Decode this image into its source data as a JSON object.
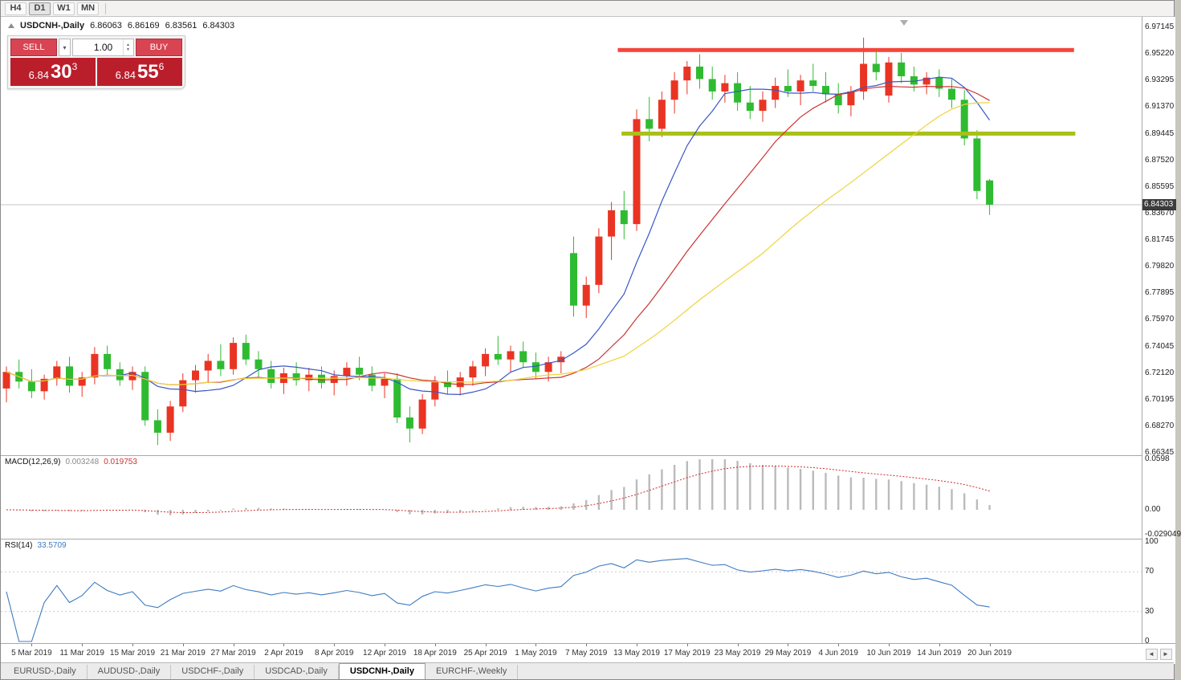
{
  "window": {
    "periods": [
      {
        "label": "H4",
        "active": false
      },
      {
        "label": "D1",
        "active": true
      },
      {
        "label": "W1",
        "active": false
      },
      {
        "label": "MN",
        "active": false
      }
    ]
  },
  "chart": {
    "symbol_label": "USDCNH-,Daily",
    "ohlc": {
      "open": "6.86063",
      "high": "6.86169",
      "low": "6.83561",
      "close": "6.84303"
    },
    "trade_panel": {
      "sell_label": "SELL",
      "buy_label": "BUY",
      "volume": "1.00",
      "bid": {
        "big": "6.84",
        "pips": "30",
        "point": "3"
      },
      "ask": {
        "big": "6.84",
        "pips": "55",
        "point": "6"
      }
    }
  },
  "icons": {
    "dropdown": "▾",
    "spin_up": "▲",
    "spin_down": "▼"
  },
  "axis_arrows": {
    "left": "◄",
    "right": "►"
  },
  "tabs": [
    {
      "label": "EURUSD-,Daily",
      "active": false
    },
    {
      "label": "AUDUSD-,Daily",
      "active": false
    },
    {
      "label": "USDCHF-,Daily",
      "active": false
    },
    {
      "label": "USDCAD-,Daily",
      "active": false
    },
    {
      "label": "USDCNH-,Daily",
      "active": true
    },
    {
      "label": "EURCHF-,Weekly",
      "active": false
    }
  ],
  "colors": {
    "bull_candle": "#ea3423",
    "bear_candle": "#2fbb31",
    "ma_fast_blue": "#3a57c8",
    "ma_mid_red": "#cc3333",
    "ma_slow_yellow": "#eed43c",
    "resistance_line": "#f6453a",
    "support_line": "#a8c018",
    "macd_histogram": "#bbbbbb",
    "macd_signal": "#cf2b2b",
    "rsi_line": "#3e7bc0",
    "buy_sell_button": "#d94452",
    "price_panel": "#bb1e2b",
    "price_tag_bg": "#3c3c3c",
    "current_price_line": "#c6c6c6"
  },
  "chart_data": {
    "type": "candlestick",
    "symbol": "USDCNH",
    "timeframe": "Daily",
    "y_range": [
      6.66345,
      6.97145
    ],
    "last_price_label": "6.84303",
    "y_ticks": [
      "6.97145",
      "6.95220",
      "6.93295",
      "6.91370",
      "6.89445",
      "6.87520",
      "6.85595",
      "6.83670",
      "6.81745",
      "6.79820",
      "6.77895",
      "6.75970",
      "6.74045",
      "6.72120",
      "6.70195",
      "6.68270",
      "6.66345"
    ],
    "x_labels": [
      {
        "bar": 2,
        "text": "5 Mar 2019"
      },
      {
        "bar": 6,
        "text": "11 Mar 2019"
      },
      {
        "bar": 10,
        "text": "15 Mar 2019"
      },
      {
        "bar": 14,
        "text": "21 Mar 2019"
      },
      {
        "bar": 18,
        "text": "27 Mar 2019"
      },
      {
        "bar": 22,
        "text": "2 Apr 2019"
      },
      {
        "bar": 26,
        "text": "8 Apr 2019"
      },
      {
        "bar": 30,
        "text": "12 Apr 2019"
      },
      {
        "bar": 34,
        "text": "18 Apr 2019"
      },
      {
        "bar": 38,
        "text": "25 Apr 2019"
      },
      {
        "bar": 42,
        "text": "1 May 2019"
      },
      {
        "bar": 46,
        "text": "7 May 2019"
      },
      {
        "bar": 50,
        "text": "13 May 2019"
      },
      {
        "bar": 54,
        "text": "17 May 2019"
      },
      {
        "bar": 58,
        "text": "23 May 2019"
      },
      {
        "bar": 62,
        "text": "29 May 2019"
      },
      {
        "bar": 66,
        "text": "4 Jun 2019"
      },
      {
        "bar": 70,
        "text": "10 Jun 2019"
      },
      {
        "bar": 74,
        "text": "14 Jun 2019"
      },
      {
        "bar": 78,
        "text": "20 Jun 2019"
      }
    ],
    "moving_averages": [
      {
        "period": 8,
        "color_key": "ma_fast_blue"
      },
      {
        "period": 17,
        "color_key": "ma_mid_red"
      },
      {
        "period": 30,
        "color_key": "ma_slow_yellow"
      }
    ],
    "hlines": [
      {
        "name": "resistance-line",
        "price": 6.955,
        "bar_start": 48.5,
        "bar_end": 84.7,
        "color_key": "resistance_line",
        "thickness": 5
      },
      {
        "name": "support-line",
        "price": 6.8945,
        "bar_start": 48.8,
        "bar_end": 84.8,
        "color_key": "support_line",
        "thickness": 5
      }
    ],
    "indicators": {
      "macd": {
        "name": "MACD(12,26,9)",
        "value": "0.003248",
        "signal": "0.019753",
        "fast": 12,
        "slow": 26,
        "signal_period": 9,
        "scale": [
          {
            "text": "0.0598",
            "v": 0.0598
          },
          {
            "text": "0.00",
            "v": 0
          },
          {
            "text": "-0.029049",
            "v": -0.029049
          }
        ]
      },
      "rsi": {
        "name": "RSI(14)",
        "value": "33.5709",
        "period": 14,
        "levels": [
          70,
          30
        ],
        "scale": [
          {
            "text": "100",
            "v": 100
          },
          {
            "text": "70",
            "v": 70
          },
          {
            "text": "30",
            "v": 30
          },
          {
            "text": "0",
            "v": 0
          }
        ]
      }
    },
    "candles": [
      {
        "t": "2019-03-01",
        "o": 6.71,
        "h": 6.726,
        "l": 6.7,
        "c": 6.722
      },
      {
        "t": "2019-03-04",
        "o": 6.722,
        "h": 6.731,
        "l": 6.71,
        "c": 6.715
      },
      {
        "t": "2019-03-05",
        "o": 6.715,
        "h": 6.724,
        "l": 6.703,
        "c": 6.708
      },
      {
        "t": "2019-03-06",
        "o": 6.708,
        "h": 6.72,
        "l": 6.702,
        "c": 6.717
      },
      {
        "t": "2019-03-07",
        "o": 6.717,
        "h": 6.73,
        "l": 6.712,
        "c": 6.726
      },
      {
        "t": "2019-03-08",
        "o": 6.726,
        "h": 6.733,
        "l": 6.707,
        "c": 6.712
      },
      {
        "t": "2019-03-11",
        "o": 6.712,
        "h": 6.722,
        "l": 6.704,
        "c": 6.718
      },
      {
        "t": "2019-03-12",
        "o": 6.718,
        "h": 6.74,
        "l": 6.713,
        "c": 6.735
      },
      {
        "t": "2019-03-13",
        "o": 6.735,
        "h": 6.741,
        "l": 6.72,
        "c": 6.724
      },
      {
        "t": "2019-03-14",
        "o": 6.724,
        "h": 6.729,
        "l": 6.712,
        "c": 6.716
      },
      {
        "t": "2019-03-15",
        "o": 6.716,
        "h": 6.726,
        "l": 6.709,
        "c": 6.722
      },
      {
        "t": "2019-03-18",
        "o": 6.722,
        "h": 6.726,
        "l": 6.683,
        "c": 6.687
      },
      {
        "t": "2019-03-19",
        "o": 6.687,
        "h": 6.695,
        "l": 6.669,
        "c": 6.678
      },
      {
        "t": "2019-03-20",
        "o": 6.678,
        "h": 6.701,
        "l": 6.672,
        "c": 6.697
      },
      {
        "t": "2019-03-21",
        "o": 6.697,
        "h": 6.721,
        "l": 6.693,
        "c": 6.716
      },
      {
        "t": "2019-03-22",
        "o": 6.716,
        "h": 6.727,
        "l": 6.707,
        "c": 6.723
      },
      {
        "t": "2019-03-25",
        "o": 6.723,
        "h": 6.735,
        "l": 6.714,
        "c": 6.73
      },
      {
        "t": "2019-03-26",
        "o": 6.73,
        "h": 6.742,
        "l": 6.719,
        "c": 6.724
      },
      {
        "t": "2019-03-27",
        "o": 6.724,
        "h": 6.747,
        "l": 6.72,
        "c": 6.743
      },
      {
        "t": "2019-03-28",
        "o": 6.743,
        "h": 6.749,
        "l": 6.727,
        "c": 6.731
      },
      {
        "t": "2019-03-29",
        "o": 6.731,
        "h": 6.737,
        "l": 6.718,
        "c": 6.724
      },
      {
        "t": "2019-04-01",
        "o": 6.724,
        "h": 6.73,
        "l": 6.71,
        "c": 6.714
      },
      {
        "t": "2019-04-02",
        "o": 6.714,
        "h": 6.725,
        "l": 6.706,
        "c": 6.721
      },
      {
        "t": "2019-04-03",
        "o": 6.721,
        "h": 6.729,
        "l": 6.712,
        "c": 6.716
      },
      {
        "t": "2019-04-04",
        "o": 6.716,
        "h": 6.725,
        "l": 6.708,
        "c": 6.72
      },
      {
        "t": "2019-04-05",
        "o": 6.72,
        "h": 6.726,
        "l": 6.71,
        "c": 6.714
      },
      {
        "t": "2019-04-08",
        "o": 6.714,
        "h": 6.723,
        "l": 6.705,
        "c": 6.719
      },
      {
        "t": "2019-04-09",
        "o": 6.719,
        "h": 6.729,
        "l": 6.712,
        "c": 6.725
      },
      {
        "t": "2019-04-10",
        "o": 6.725,
        "h": 6.733,
        "l": 6.716,
        "c": 6.72
      },
      {
        "t": "2019-04-11",
        "o": 6.72,
        "h": 6.726,
        "l": 6.708,
        "c": 6.712
      },
      {
        "t": "2019-04-12",
        "o": 6.712,
        "h": 6.721,
        "l": 6.703,
        "c": 6.717
      },
      {
        "t": "2019-04-15",
        "o": 6.717,
        "h": 6.721,
        "l": 6.685,
        "c": 6.689
      },
      {
        "t": "2019-04-16",
        "o": 6.689,
        "h": 6.697,
        "l": 6.671,
        "c": 6.681
      },
      {
        "t": "2019-04-17",
        "o": 6.681,
        "h": 6.706,
        "l": 6.677,
        "c": 6.702
      },
      {
        "t": "2019-04-18",
        "o": 6.702,
        "h": 6.719,
        "l": 6.697,
        "c": 6.715
      },
      {
        "t": "2019-04-22",
        "o": 6.715,
        "h": 6.723,
        "l": 6.706,
        "c": 6.711
      },
      {
        "t": "2019-04-23",
        "o": 6.711,
        "h": 6.722,
        "l": 6.705,
        "c": 6.718
      },
      {
        "t": "2019-04-24",
        "o": 6.718,
        "h": 6.73,
        "l": 6.712,
        "c": 6.726
      },
      {
        "t": "2019-04-25",
        "o": 6.726,
        "h": 6.739,
        "l": 6.719,
        "c": 6.735
      },
      {
        "t": "2019-04-26",
        "o": 6.735,
        "h": 6.748,
        "l": 6.727,
        "c": 6.731
      },
      {
        "t": "2019-04-29",
        "o": 6.731,
        "h": 6.741,
        "l": 6.722,
        "c": 6.737
      },
      {
        "t": "2019-04-30",
        "o": 6.737,
        "h": 6.744,
        "l": 6.725,
        "c": 6.729
      },
      {
        "t": "2019-05-01",
        "o": 6.729,
        "h": 6.736,
        "l": 6.717,
        "c": 6.722
      },
      {
        "t": "2019-05-02",
        "o": 6.722,
        "h": 6.733,
        "l": 6.715,
        "c": 6.729
      },
      {
        "t": "2019-05-03",
        "o": 6.729,
        "h": 6.737,
        "l": 6.721,
        "c": 6.733
      },
      {
        "t": "2019-05-06",
        "o": 6.808,
        "h": 6.82,
        "l": 6.762,
        "c": 6.77
      },
      {
        "t": "2019-05-07",
        "o": 6.77,
        "h": 6.791,
        "l": 6.761,
        "c": 6.785
      },
      {
        "t": "2019-05-08",
        "o": 6.785,
        "h": 6.826,
        "l": 6.779,
        "c": 6.82
      },
      {
        "t": "2019-05-09",
        "o": 6.82,
        "h": 6.845,
        "l": 6.803,
        "c": 6.839
      },
      {
        "t": "2019-05-10",
        "o": 6.839,
        "h": 6.853,
        "l": 6.818,
        "c": 6.829
      },
      {
        "t": "2019-05-13",
        "o": 6.829,
        "h": 6.912,
        "l": 6.824,
        "c": 6.905
      },
      {
        "t": "2019-05-14",
        "o": 6.905,
        "h": 6.921,
        "l": 6.889,
        "c": 6.898
      },
      {
        "t": "2019-05-15",
        "o": 6.898,
        "h": 6.925,
        "l": 6.892,
        "c": 6.919
      },
      {
        "t": "2019-05-16",
        "o": 6.919,
        "h": 6.939,
        "l": 6.909,
        "c": 6.933
      },
      {
        "t": "2019-05-17",
        "o": 6.933,
        "h": 6.947,
        "l": 6.923,
        "c": 6.943
      },
      {
        "t": "2019-05-20",
        "o": 6.943,
        "h": 6.952,
        "l": 6.927,
        "c": 6.934
      },
      {
        "t": "2019-05-21",
        "o": 6.934,
        "h": 6.943,
        "l": 6.919,
        "c": 6.925
      },
      {
        "t": "2019-05-22",
        "o": 6.925,
        "h": 6.937,
        "l": 6.917,
        "c": 6.931
      },
      {
        "t": "2019-05-23",
        "o": 6.931,
        "h": 6.939,
        "l": 6.911,
        "c": 6.917
      },
      {
        "t": "2019-05-24",
        "o": 6.917,
        "h": 6.929,
        "l": 6.905,
        "c": 6.911
      },
      {
        "t": "2019-05-27",
        "o": 6.911,
        "h": 6.925,
        "l": 6.903,
        "c": 6.919
      },
      {
        "t": "2019-05-28",
        "o": 6.919,
        "h": 6.935,
        "l": 6.913,
        "c": 6.929
      },
      {
        "t": "2019-05-29",
        "o": 6.929,
        "h": 6.941,
        "l": 6.921,
        "c": 6.925
      },
      {
        "t": "2019-05-30",
        "o": 6.925,
        "h": 6.937,
        "l": 6.915,
        "c": 6.933
      },
      {
        "t": "2019-05-31",
        "o": 6.933,
        "h": 6.945,
        "l": 6.925,
        "c": 6.929
      },
      {
        "t": "2019-06-03",
        "o": 6.929,
        "h": 6.939,
        "l": 6.917,
        "c": 6.923
      },
      {
        "t": "2019-06-04",
        "o": 6.923,
        "h": 6.931,
        "l": 6.909,
        "c": 6.915
      },
      {
        "t": "2019-06-05",
        "o": 6.915,
        "h": 6.929,
        "l": 6.907,
        "c": 6.925
      },
      {
        "t": "2019-06-06",
        "o": 6.925,
        "h": 6.964,
        "l": 6.919,
        "c": 6.945
      },
      {
        "t": "2019-06-07",
        "o": 6.945,
        "h": 6.955,
        "l": 6.933,
        "c": 6.939
      },
      {
        "t": "2019-06-10",
        "o": 6.922,
        "h": 6.95,
        "l": 6.917,
        "c": 6.946
      },
      {
        "t": "2019-06-11",
        "o": 6.946,
        "h": 6.953,
        "l": 6.931,
        "c": 6.936
      },
      {
        "t": "2019-06-12",
        "o": 6.936,
        "h": 6.943,
        "l": 6.925,
        "c": 6.93
      },
      {
        "t": "2019-06-13",
        "o": 6.93,
        "h": 6.939,
        "l": 6.923,
        "c": 6.935
      },
      {
        "t": "2019-06-14",
        "o": 6.935,
        "h": 6.941,
        "l": 6.921,
        "c": 6.927
      },
      {
        "t": "2019-06-17",
        "o": 6.927,
        "h": 6.934,
        "l": 6.913,
        "c": 6.919
      },
      {
        "t": "2019-06-18",
        "o": 6.919,
        "h": 6.926,
        "l": 6.886,
        "c": 6.891
      },
      {
        "t": "2019-06-19",
        "o": 6.891,
        "h": 6.897,
        "l": 6.847,
        "c": 6.853
      },
      {
        "t": "2019-06-20",
        "o": 6.86063,
        "h": 6.86169,
        "l": 6.83561,
        "c": 6.84303
      }
    ]
  }
}
